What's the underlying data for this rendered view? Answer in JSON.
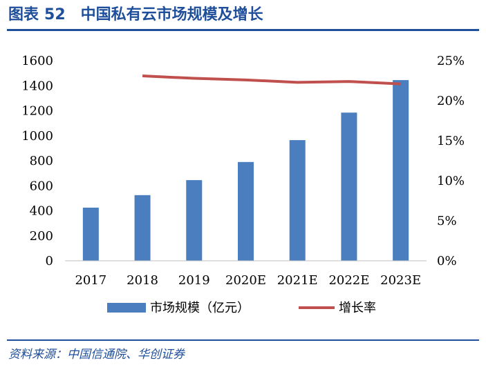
{
  "figure": {
    "label": "图表",
    "number": "52",
    "title": "中国私有云市场规模及增长",
    "source": "资料来源：中国信通院、华创证券"
  },
  "chart_data": {
    "type": "bar",
    "categories": [
      "2017",
      "2018",
      "2019",
      "2020E",
      "2021E",
      "2022E",
      "2023E"
    ],
    "series": [
      {
        "name": "市场规模（亿元）",
        "type": "bar",
        "axis": "left",
        "values": [
          425,
          525,
          645,
          790,
          965,
          1185,
          1445
        ]
      },
      {
        "name": "增长率",
        "type": "line",
        "axis": "right",
        "values": [
          null,
          23.1,
          22.8,
          22.6,
          22.3,
          22.4,
          22.1
        ]
      }
    ],
    "y_left": {
      "min": 0,
      "max": 1600,
      "step": 200,
      "ticks": [
        "0",
        "200",
        "400",
        "600",
        "800",
        "1000",
        "1200",
        "1400",
        "1600"
      ]
    },
    "y_right": {
      "min": 0,
      "max": 25,
      "step": 5,
      "ticks": [
        "0%",
        "5%",
        "10%",
        "15%",
        "20%",
        "25%"
      ]
    },
    "grid": false,
    "legend_position": "bottom",
    "colors": {
      "bar": "#4a7ebf",
      "line": "#c0504d"
    }
  }
}
